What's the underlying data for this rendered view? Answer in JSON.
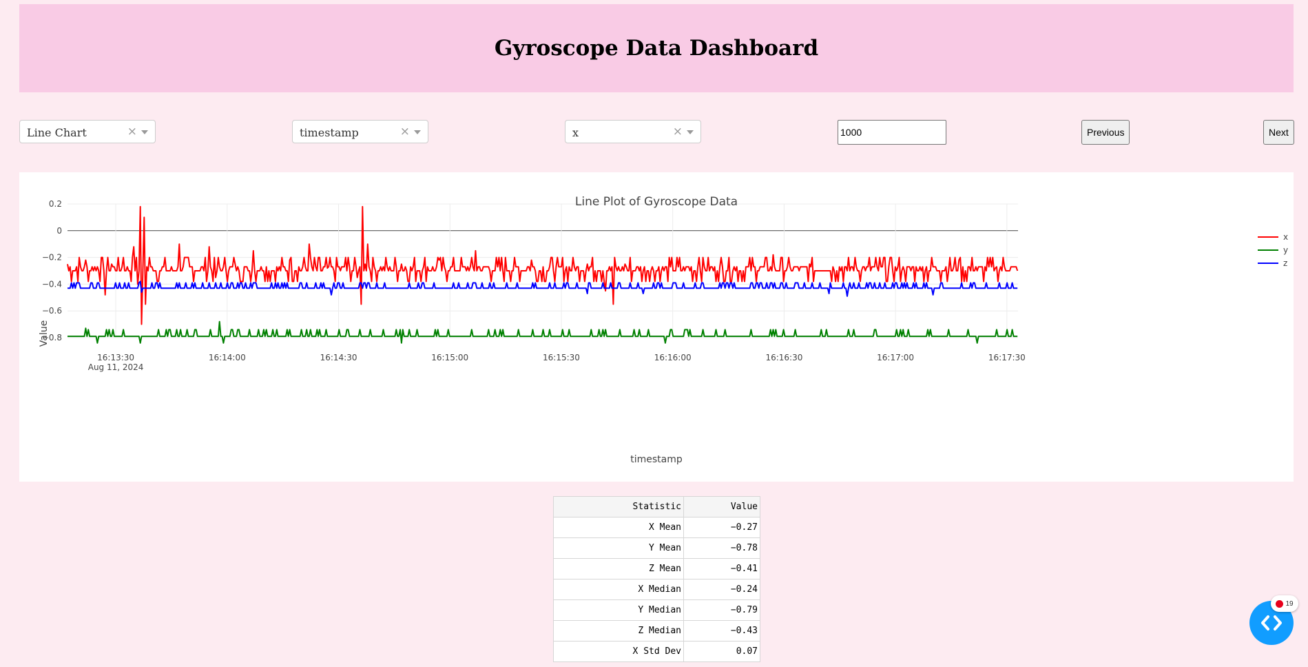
{
  "header": {
    "title": "Gyroscope Data Dashboard"
  },
  "controls": {
    "chart_type": "Line Chart",
    "x_axis": "timestamp",
    "y_axis": "x",
    "rows_input": "1000",
    "previous_label": "Previous",
    "next_label": "Next",
    "clear_icon": "×"
  },
  "chart_data": {
    "type": "line",
    "title": "Line Plot of Gyroscope Data",
    "xlabel": "timestamp",
    "ylabel": "Value",
    "x_ticks": [
      "16:13:30",
      "16:14:00",
      "16:14:30",
      "16:15:00",
      "16:15:30",
      "16:16:00",
      "16:16:30",
      "16:17:00",
      "16:17:30"
    ],
    "x_date_label": "Aug 11, 2024",
    "y_ticks": [
      "0.2",
      "0",
      "−0.2",
      "−0.4",
      "−0.6",
      "−0.8"
    ],
    "ylim": [
      -0.8,
      0.2
    ],
    "xlim": [
      "16:13:17",
      "16:17:33"
    ],
    "grid": true,
    "legend_placement": "top-right",
    "colors": {
      "x": "#ff0000",
      "y": "#008000",
      "z": "#0000ff",
      "zero_line": "#444444"
    },
    "series": [
      {
        "name": "x",
        "baseline": -0.27,
        "values": [
          [
            0,
            -0.25
          ],
          [
            2,
            -0.3
          ],
          [
            5,
            -0.22
          ],
          [
            8,
            -0.27
          ],
          [
            10,
            -0.48
          ],
          [
            12,
            -0.25
          ],
          [
            15,
            -0.2
          ],
          [
            18,
            -0.12
          ],
          [
            19,
            -0.4
          ],
          [
            19.5,
            0.18
          ],
          [
            20,
            -0.7
          ],
          [
            20.5,
            0.1
          ],
          [
            21,
            -0.55
          ],
          [
            22,
            -0.2
          ],
          [
            25,
            -0.3
          ],
          [
            30,
            -0.1
          ],
          [
            35,
            -0.3
          ],
          [
            38,
            -0.12
          ],
          [
            40,
            -0.35
          ],
          [
            45,
            -0.25
          ],
          [
            50,
            -0.15
          ],
          [
            55,
            -0.3
          ],
          [
            60,
            -0.22
          ],
          [
            65,
            -0.1
          ],
          [
            70,
            -0.28
          ],
          [
            75,
            -0.2
          ],
          [
            78,
            -0.35
          ],
          [
            79,
            -0.55
          ],
          [
            79.5,
            0.18
          ],
          [
            80,
            -0.25
          ],
          [
            81,
            -0.1
          ],
          [
            83,
            -0.3
          ],
          [
            90,
            -0.25
          ],
          [
            100,
            -0.22
          ],
          [
            105,
            -0.3
          ],
          [
            110,
            -0.15
          ],
          [
            115,
            -0.3
          ],
          [
            125,
            -0.22
          ],
          [
            140,
            -0.25
          ],
          [
            145,
            -0.45
          ],
          [
            147,
            -0.55
          ],
          [
            150,
            -0.25
          ],
          [
            160,
            -0.3
          ],
          [
            170,
            -0.2
          ],
          [
            180,
            -0.3
          ],
          [
            190,
            -0.18
          ],
          [
            200,
            -0.25
          ],
          [
            210,
            -0.3
          ],
          [
            220,
            -0.2
          ],
          [
            230,
            -0.3
          ],
          [
            240,
            -0.22
          ],
          [
            250,
            -0.28
          ],
          [
            256,
            -0.3
          ]
        ]
      },
      {
        "name": "y",
        "baseline": -0.79,
        "values": [
          [
            0,
            -0.79
          ],
          [
            4,
            -0.79
          ],
          [
            5,
            -0.73
          ],
          [
            6,
            -0.79
          ],
          [
            8,
            -0.84
          ],
          [
            9,
            -0.79
          ],
          [
            19.5,
            -0.84
          ],
          [
            20,
            -0.79
          ],
          [
            41,
            -0.68
          ],
          [
            42,
            -0.84
          ],
          [
            43,
            -0.79
          ],
          [
            75,
            -0.79
          ],
          [
            90,
            -0.84
          ],
          [
            91,
            -0.79
          ],
          [
            161,
            -0.84
          ],
          [
            162,
            -0.79
          ],
          [
            245,
            -0.84
          ],
          [
            246,
            -0.79
          ],
          [
            256,
            -0.79
          ]
        ]
      },
      {
        "name": "z",
        "baseline": -0.43,
        "values": [
          [
            0,
            -0.43
          ],
          [
            3,
            -0.39
          ],
          [
            5,
            -0.43
          ],
          [
            19.5,
            -0.38
          ],
          [
            20,
            -0.46
          ],
          [
            21,
            -0.43
          ],
          [
            71,
            -0.48
          ],
          [
            72,
            -0.43
          ],
          [
            140,
            -0.47
          ],
          [
            141,
            -0.43
          ],
          [
            155,
            -0.47
          ],
          [
            156,
            -0.43
          ],
          [
            205,
            -0.47
          ],
          [
            206,
            -0.43
          ],
          [
            210,
            -0.49
          ],
          [
            211,
            -0.43
          ],
          [
            233,
            -0.48
          ],
          [
            234,
            -0.43
          ],
          [
            256,
            -0.43
          ]
        ]
      }
    ]
  },
  "stats_table": {
    "headers": [
      "Statistic",
      "Value"
    ],
    "rows": [
      [
        "X Mean",
        "-0.27"
      ],
      [
        "Y Mean",
        "-0.78"
      ],
      [
        "Z Mean",
        "-0.41"
      ],
      [
        "X Median",
        "-0.24"
      ],
      [
        "Y Median",
        "-0.79"
      ],
      [
        "Z Median",
        "-0.43"
      ],
      [
        "X Std Dev",
        "0.07"
      ]
    ]
  },
  "badge": {
    "count": "19"
  },
  "icons": {
    "fab": "code-chevrons-icon",
    "badge_dot": "error-dot-icon"
  }
}
